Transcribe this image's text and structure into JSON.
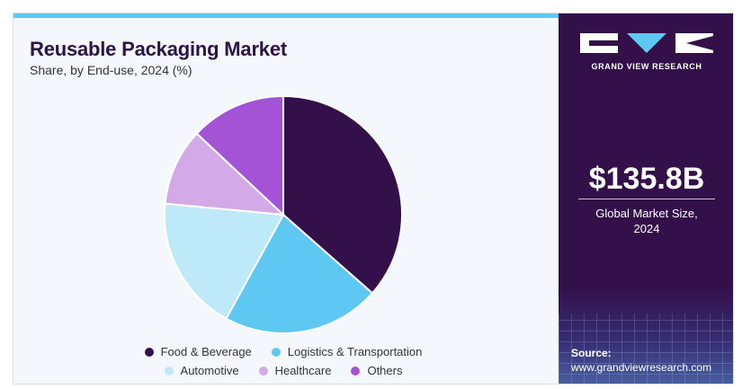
{
  "header": {
    "title": "Reusable Packaging Market",
    "subtitle": "Share, by End-use, 2024 (%)"
  },
  "colors": {
    "accent_bar": "#5ec8f2",
    "panel_bg": "#33104a",
    "title": "#2d1448"
  },
  "chart_data": {
    "type": "pie",
    "title": "Reusable Packaging Market",
    "subtitle": "Share, by End-use, 2024 (%)",
    "categories": [
      "Food & Beverage",
      "Logistics & Transportation",
      "Automotive",
      "Healthcare",
      "Others"
    ],
    "values": [
      36.5,
      21.5,
      18.5,
      10.5,
      13.0
    ],
    "colors": [
      "#33104a",
      "#5ec8f2",
      "#bde9f8",
      "#d4a9e8",
      "#a452d6"
    ],
    "legend_position": "bottom",
    "legend": [
      {
        "label": "Food & Beverage",
        "color": "#33104a"
      },
      {
        "label": "Logistics & Transportation",
        "color": "#5ec8f2"
      },
      {
        "label": "Automotive",
        "color": "#bde9f8"
      },
      {
        "label": "Healthcare",
        "color": "#d4a9e8"
      },
      {
        "label": "Others",
        "color": "#a452d6"
      }
    ]
  },
  "sidebar": {
    "brand": "GRAND VIEW RESEARCH",
    "logo_icon": "gvr-logo-icon",
    "market_size": "$135.8B",
    "market_size_label_line1": "Global Market Size,",
    "market_size_label_line2": "2024",
    "source_label": "Source:",
    "source_url": "www.grandviewresearch.com"
  }
}
